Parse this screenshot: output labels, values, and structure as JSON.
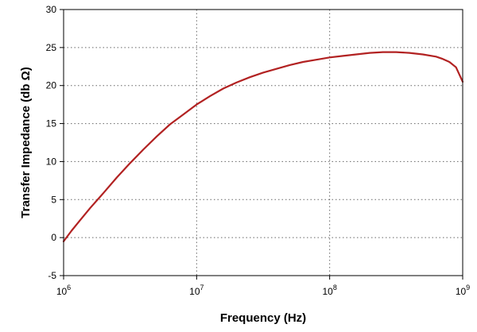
{
  "chart_data": {
    "type": "line",
    "title": "",
    "xlabel": "Frequency (Hz)",
    "ylabel": "Transfer Impedance (db Ω)",
    "xscale": "log",
    "xlim": [
      1000000,
      1000000000
    ],
    "ylim": [
      -5,
      30
    ],
    "grid": true,
    "legend": "none",
    "x_ticks": [
      {
        "value": 1000000,
        "base": "10",
        "exp": "6"
      },
      {
        "value": 10000000,
        "base": "10",
        "exp": "7"
      },
      {
        "value": 100000000,
        "base": "10",
        "exp": "8"
      },
      {
        "value": 1000000000,
        "base": "10",
        "exp": "9"
      }
    ],
    "y_ticks": [
      {
        "value": -5,
        "label": "-5"
      },
      {
        "value": 0,
        "label": "0"
      },
      {
        "value": 5,
        "label": "5"
      },
      {
        "value": 10,
        "label": "10"
      },
      {
        "value": 15,
        "label": "15"
      },
      {
        "value": 20,
        "label": "20"
      },
      {
        "value": 25,
        "label": "25"
      },
      {
        "value": 30,
        "label": "30"
      }
    ],
    "series": [
      {
        "color": "#b22222",
        "x": [
          1000000,
          1148000,
          1318000,
          1585000,
          2000000,
          2512000,
          3162000,
          3981000,
          5012000,
          6310000,
          7943000,
          10000000,
          12590000,
          15850000,
          19950000,
          25120000,
          31620000,
          39810000,
          50120000,
          63100000,
          79430000,
          100000000,
          125900000,
          158500000,
          199500000,
          251200000,
          316200000,
          398100000,
          501200000,
          631000000,
          707900000,
          794300000,
          891300000,
          1000000000
        ],
        "y": [
          -0.5,
          0.9,
          2.2,
          3.9,
          5.9,
          7.9,
          9.8,
          11.6,
          13.3,
          14.9,
          16.2,
          17.5,
          18.6,
          19.6,
          20.4,
          21.1,
          21.7,
          22.2,
          22.7,
          23.1,
          23.4,
          23.7,
          23.9,
          24.1,
          24.3,
          24.4,
          24.4,
          24.3,
          24.1,
          23.8,
          23.5,
          23.1,
          22.4,
          20.5
        ]
      }
    ]
  }
}
